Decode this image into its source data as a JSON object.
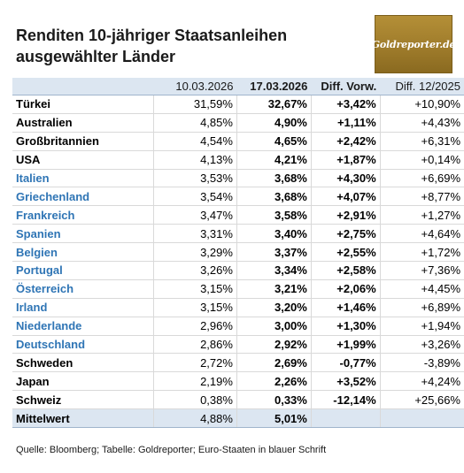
{
  "title_lines": [
    "Renditen 10-jähriger Staatsanleihen",
    "ausgewählter Länder"
  ],
  "logo_text": "Goldreporter.de",
  "source": "Quelle: Bloomberg; Tabelle: Goldreporter; Euro-Staaten in blauer Schrift",
  "colors": {
    "header_bg": "#dce6f1",
    "euro_text": "#2f75b5",
    "logo_gold": "#a8852f"
  },
  "chart_data": {
    "type": "table",
    "columns": [
      "",
      "10.03.2026",
      "17.03.2026",
      "Diff. Vorw.",
      "Diff. 12/2025"
    ],
    "rows": [
      {
        "country": "Türkei",
        "euro": false,
        "v1": "31,59%",
        "v2": "32,67%",
        "d1": "+3,42%",
        "d2": "+10,90%"
      },
      {
        "country": "Australien",
        "euro": false,
        "v1": "4,85%",
        "v2": "4,90%",
        "d1": "+1,11%",
        "d2": "+4,43%"
      },
      {
        "country": "Großbritannien",
        "euro": false,
        "v1": "4,54%",
        "v2": "4,65%",
        "d1": "+2,42%",
        "d2": "+6,31%"
      },
      {
        "country": "USA",
        "euro": false,
        "v1": "4,13%",
        "v2": "4,21%",
        "d1": "+1,87%",
        "d2": "+0,14%"
      },
      {
        "country": "Italien",
        "euro": true,
        "v1": "3,53%",
        "v2": "3,68%",
        "d1": "+4,30%",
        "d2": "+6,69%"
      },
      {
        "country": "Griechenland",
        "euro": true,
        "v1": "3,54%",
        "v2": "3,68%",
        "d1": "+4,07%",
        "d2": "+8,77%"
      },
      {
        "country": "Frankreich",
        "euro": true,
        "v1": "3,47%",
        "v2": "3,58%",
        "d1": "+2,91%",
        "d2": "+1,27%"
      },
      {
        "country": "Spanien",
        "euro": true,
        "v1": "3,31%",
        "v2": "3,40%",
        "d1": "+2,75%",
        "d2": "+4,64%"
      },
      {
        "country": "Belgien",
        "euro": true,
        "v1": "3,29%",
        "v2": "3,37%",
        "d1": "+2,55%",
        "d2": "+1,72%"
      },
      {
        "country": "Portugal",
        "euro": true,
        "v1": "3,26%",
        "v2": "3,34%",
        "d1": "+2,58%",
        "d2": "+7,36%"
      },
      {
        "country": "Österreich",
        "euro": true,
        "v1": "3,15%",
        "v2": "3,21%",
        "d1": "+2,06%",
        "d2": "+4,45%"
      },
      {
        "country": "Irland",
        "euro": true,
        "v1": "3,15%",
        "v2": "3,20%",
        "d1": "+1,46%",
        "d2": "+6,89%"
      },
      {
        "country": "Niederlande",
        "euro": true,
        "v1": "2,96%",
        "v2": "3,00%",
        "d1": "+1,30%",
        "d2": "+1,94%"
      },
      {
        "country": "Deutschland",
        "euro": true,
        "v1": "2,86%",
        "v2": "2,92%",
        "d1": "+1,99%",
        "d2": "+3,26%"
      },
      {
        "country": "Schweden",
        "euro": false,
        "v1": "2,72%",
        "v2": "2,69%",
        "d1": "-0,77%",
        "d2": "-3,89%"
      },
      {
        "country": "Japan",
        "euro": false,
        "v1": "2,19%",
        "v2": "2,26%",
        "d1": "+3,52%",
        "d2": "+4,24%"
      },
      {
        "country": "Schweiz",
        "euro": false,
        "v1": "0,38%",
        "v2": "0,33%",
        "d1": "-12,14%",
        "d2": "+25,66%"
      }
    ],
    "average": {
      "label": "Mittelwert",
      "v1": "4,88%",
      "v2": "5,01%",
      "d1": "",
      "d2": ""
    }
  }
}
